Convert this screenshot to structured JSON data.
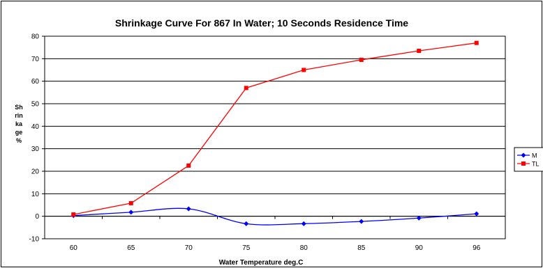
{
  "chart_data": {
    "type": "line",
    "title": "Shrinkage Curve For 867 In Water; 10 Seconds Residence Time",
    "xlabel": "Water Temperature deg.C",
    "ylabel_lines": [
      "Sh",
      "rin",
      "ka",
      "ge",
      "%"
    ],
    "categories": [
      "60",
      "65",
      "70",
      "75",
      "80",
      "85",
      "90",
      "96"
    ],
    "ylim": [
      -10,
      80
    ],
    "yticks": [
      -10,
      0,
      10,
      20,
      30,
      40,
      50,
      60,
      70,
      80
    ],
    "grid": true,
    "legend_position": "right",
    "series": [
      {
        "name": "M",
        "color": "#0000ff",
        "marker": "diamond",
        "smooth": true,
        "values": [
          0.3,
          1.8,
          3.3,
          -3.3,
          -3.3,
          -2.3,
          -0.8,
          1.1
        ]
      },
      {
        "name": "TL",
        "color": "#ff0000",
        "marker": "square",
        "smooth": false,
        "values": [
          0.8,
          5.8,
          22.5,
          57.0,
          65.0,
          69.5,
          73.5,
          77.0
        ]
      }
    ]
  }
}
